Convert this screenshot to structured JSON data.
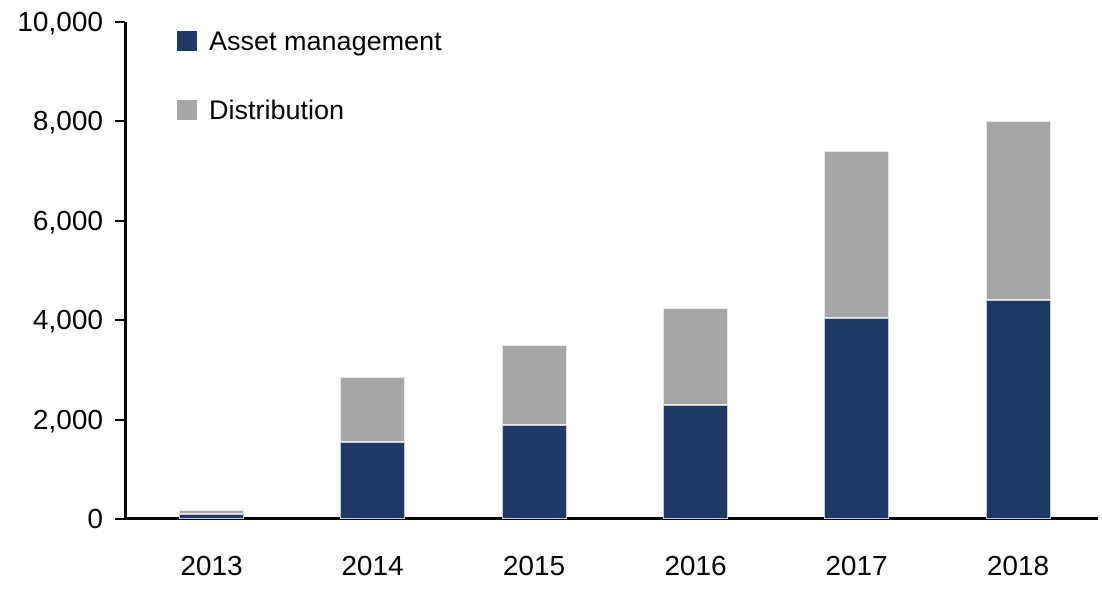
{
  "chart_data": {
    "type": "bar",
    "stacked": true,
    "title": "",
    "xlabel": "",
    "ylabel": "",
    "categories": [
      "2013",
      "2014",
      "2015",
      "2016",
      "2017",
      "2018"
    ],
    "series": [
      {
        "name": "Asset management",
        "color": "#1f3864",
        "values": [
          100,
          1550,
          1900,
          2300,
          4050,
          4400
        ]
      },
      {
        "name": "Distribution",
        "color": "#a6a6a6",
        "values": [
          80,
          1310,
          1600,
          1950,
          3350,
          3600
        ]
      }
    ],
    "totals": [
      180,
      2860,
      3500,
      4250,
      7400,
      8000
    ],
    "ylim": [
      0,
      10000
    ],
    "ytick_step": 2000,
    "ytick_labels": [
      "0",
      "2,000",
      "4,000",
      "6,000",
      "8,000",
      "10,000"
    ],
    "grid": false,
    "legend_position": "top-left",
    "axis_color": "#000000",
    "text_color": "#000000"
  }
}
